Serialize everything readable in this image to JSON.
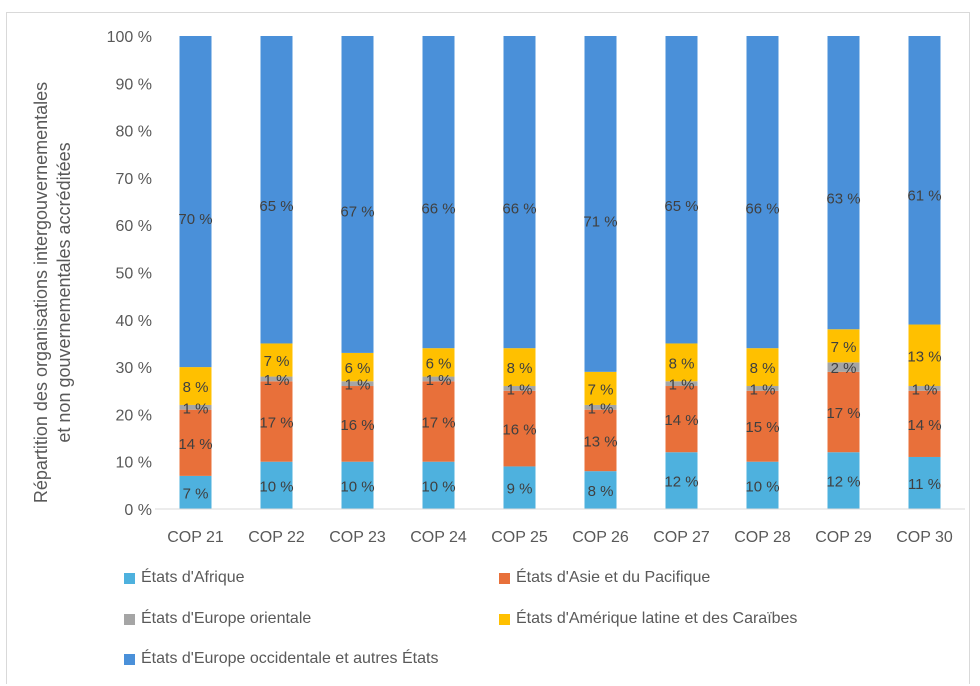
{
  "chart_data": {
    "type": "bar",
    "stacked": true,
    "percent": true,
    "ylabel": "Répartition des organisations intergouvernementales et non gouvernementales accréditées",
    "ylabel_lines": [
      "Répartition des organisations intergouvernementales",
      "et non gouvernementales accréditées"
    ],
    "xlabel": "",
    "ylim": [
      0,
      100
    ],
    "y_ticks": [
      "0 %",
      "10 %",
      "20 %",
      "30 %",
      "40 %",
      "50 %",
      "60 %",
      "70 %",
      "80 %",
      "90 %",
      "100 %"
    ],
    "grid": false,
    "legend_position": "bottom",
    "categories": [
      "COP 21",
      "COP 22",
      "COP 23",
      "COP 24",
      "COP 25",
      "COP 26",
      "COP 27",
      "COP 28",
      "COP 29",
      "COP 30"
    ],
    "series": [
      {
        "name": "États d'Afrique",
        "color": "#4eb1de",
        "values": [
          7,
          10,
          10,
          10,
          9,
          8,
          12,
          10,
          12,
          11
        ],
        "labels": [
          "7 %",
          "10 %",
          "10 %",
          "10 %",
          "9 %",
          "8 %",
          "12 %",
          "10 %",
          "12 %",
          "11 %"
        ]
      },
      {
        "name": "États d'Asie et du Pacifique",
        "color": "#e8703a",
        "values": [
          14,
          17,
          16,
          17,
          16,
          13,
          14,
          15,
          17,
          14
        ],
        "labels": [
          "14 %",
          "17 %",
          "16 %",
          "17 %",
          "16 %",
          "13 %",
          "14 %",
          "15 %",
          "17 %",
          "14 %"
        ]
      },
      {
        "name": "États d'Europe orientale",
        "color": "#a5a5a5",
        "values": [
          1,
          1,
          1,
          1,
          1,
          1,
          1,
          1,
          2,
          1
        ],
        "labels": [
          "1 %",
          "1 %",
          "1 %",
          "1 %",
          "1 %",
          "1 %",
          "1 %",
          "1 %",
          "2 %",
          "1 %"
        ]
      },
      {
        "name": "États d'Amérique latine et des Caraïbes",
        "color": "#ffc000",
        "values": [
          8,
          7,
          6,
          6,
          8,
          7,
          8,
          8,
          7,
          13
        ],
        "labels": [
          "8 %",
          "7 %",
          "6 %",
          "6 %",
          "8 %",
          "7 %",
          "8 %",
          "8 %",
          "7 %",
          "13 %"
        ]
      },
      {
        "name": "États d'Europe occidentale et autres États",
        "color": "#4a90d9",
        "values": [
          70,
          65,
          67,
          66,
          66,
          71,
          65,
          66,
          63,
          61
        ],
        "labels": [
          "70 %",
          "65 %",
          "67 %",
          "66 %",
          "66 %",
          "71 %",
          "65 %",
          "66 %",
          "63 %",
          "61 %"
        ]
      }
    ]
  }
}
